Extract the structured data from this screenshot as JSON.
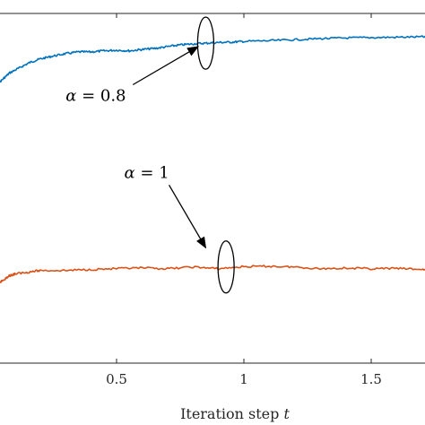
{
  "chart_data": {
    "type": "line",
    "title": "",
    "xlabel_text": "Iteration step",
    "xlabel_var": "t",
    "ylabel": "",
    "xlim": [
      0.0,
      1.75
    ],
    "ylim": [
      0.0,
      1.0
    ],
    "xticks": [
      {
        "value": 0.5,
        "label": "0.5"
      },
      {
        "value": 1.0,
        "label": "1"
      },
      {
        "value": 1.5,
        "label": "1.5"
      }
    ],
    "series": [
      {
        "color": "#0072BD",
        "x": [
          0.0,
          0.02,
          0.05,
          0.08,
          0.12,
          0.16,
          0.2,
          0.25,
          0.3,
          0.35,
          0.4,
          0.45,
          0.5,
          0.55,
          0.6,
          0.65,
          0.7,
          0.75,
          0.8,
          0.85,
          0.9,
          0.95,
          1.0,
          1.1,
          1.2,
          1.3,
          1.4,
          1.5,
          1.6,
          1.7,
          1.75
        ],
        "y": [
          0.77,
          0.79,
          0.81,
          0.83,
          0.845,
          0.86,
          0.87,
          0.878,
          0.885,
          0.89,
          0.89,
          0.893,
          0.895,
          0.893,
          0.897,
          0.9,
          0.905,
          0.91,
          0.913,
          0.915,
          0.917,
          0.918,
          0.92,
          0.922,
          0.925,
          0.928,
          0.93,
          0.931,
          0.932,
          0.933,
          0.933
        ]
      },
      {
        "color": "#D95319",
        "x": [
          0.0,
          0.02,
          0.04,
          0.06,
          0.08,
          0.1,
          0.15,
          0.2,
          0.3,
          0.4,
          0.5,
          0.6,
          0.7,
          0.8,
          0.9,
          1.0,
          1.1,
          1.2,
          1.3,
          1.4,
          1.5,
          1.6,
          1.7,
          1.75
        ],
        "y": [
          0.2,
          0.215,
          0.23,
          0.24,
          0.25,
          0.255,
          0.26,
          0.265,
          0.265,
          0.268,
          0.27,
          0.272,
          0.27,
          0.275,
          0.27,
          0.276,
          0.277,
          0.275,
          0.27,
          0.272,
          0.27,
          0.271,
          0.268,
          0.266
        ]
      }
    ],
    "annotations": [
      {
        "label_var": "α",
        "label_rest": " = 0.8",
        "text_at": [
          0.3,
          0.75
        ],
        "arrow_to": [
          0.82,
          0.905
        ],
        "ellipse_at": [
          0.85,
          0.915
        ]
      },
      {
        "label_var": "α",
        "label_rest": " = 1",
        "text_at": [
          0.53,
          0.53
        ],
        "arrow_to": [
          0.85,
          0.33
        ],
        "ellipse_at": [
          0.93,
          0.275
        ]
      }
    ]
  }
}
